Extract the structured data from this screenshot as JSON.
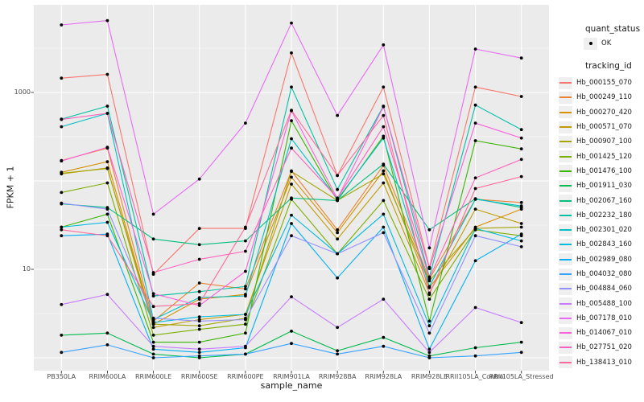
{
  "chart_data": {
    "type": "line",
    "title": "",
    "xlabel": "sample_name",
    "ylabel": "FPKM + 1",
    "y_scale": "log10",
    "ylim": [
      1,
      7000
    ],
    "grid": true,
    "legend_position": "right",
    "panel_bg": "#EBEBEB",
    "grid_color": "#FFFFFF",
    "point_color": "#000000",
    "y_ticks": [
      {
        "value": 10,
        "label": "10"
      },
      {
        "value": 1000,
        "label": "1000"
      }
    ],
    "y_major_gridlines": [
      1,
      10,
      100,
      1000
    ],
    "y_minor_gridlines": [
      3.162,
      31.62,
      316.2,
      3162
    ],
    "categories": [
      "PB350LA",
      "RRIM600LA",
      "RRIM600LE",
      "RRIM600SE",
      "RRIM600PE",
      "RRIM901LA",
      "RRIM928BA",
      "RRIM928LA",
      "RRIM928LE",
      "RRII105LA_Control",
      "RRII105LA_Stressed"
    ],
    "series": [
      {
        "name": "Hb_000155_070",
        "color": "#F8766D",
        "values": [
          1450,
          1600,
          8.8,
          29,
          29,
          2800,
          115,
          1150,
          10.5,
          1150,
          900
        ]
      },
      {
        "name": "Hb_000249_110",
        "color": "#EA8331",
        "values": [
          170,
          235,
          2.6,
          7.0,
          6.0,
          130,
          28,
          150,
          7.8,
          62,
          57
        ]
      },
      {
        "name": "Hb_000270_420",
        "color": "#D89000",
        "values": [
          125,
          165,
          2.4,
          4.6,
          5.2,
          110,
          26,
          130,
          6.2,
          30,
          48
        ]
      },
      {
        "name": "Hb_000571_070",
        "color": "#C09B00",
        "values": [
          120,
          140,
          2.2,
          2.7,
          3.1,
          92,
          22,
          95,
          5.4,
          48,
          33
        ]
      },
      {
        "name": "Hb_000907_100",
        "color": "#A3A500",
        "values": [
          122,
          138,
          2.4,
          2.3,
          2.8,
          128,
          60,
          120,
          7.4,
          29,
          30
        ]
      },
      {
        "name": "Hb_001425_120",
        "color": "#7CAE00",
        "values": [
          74,
          95,
          1.8,
          2.1,
          2.4,
          62,
          15,
          60,
          4.6,
          28,
          24
        ]
      },
      {
        "name": "Hb_001476_100",
        "color": "#39B600",
        "values": [
          30,
          42,
          1.5,
          1.5,
          1.9,
          480,
          60,
          320,
          2.6,
          285,
          230
        ]
      },
      {
        "name": "Hb_001911_030",
        "color": "#00BB4E",
        "values": [
          1.8,
          1.9,
          1.1,
          1.0,
          1.1,
          2.0,
          1.2,
          1.7,
          1.05,
          1.3,
          1.5
        ]
      },
      {
        "name": "Hb_002067_160",
        "color": "#00BF7D",
        "values": [
          55,
          50,
          22,
          19,
          21,
          64,
          60,
          155,
          28,
          63,
          50
        ]
      },
      {
        "name": "Hb_002232_180",
        "color": "#00C1A3",
        "values": [
          500,
          700,
          5.0,
          5.6,
          6.4,
          1150,
          80,
          700,
          8.2,
          720,
          380
        ]
      },
      {
        "name": "Hb_002301_020",
        "color": "#00BFC4",
        "values": [
          410,
          580,
          2.7,
          4.8,
          5.0,
          300,
          62,
          305,
          6.4,
          62,
          52
        ]
      },
      {
        "name": "Hb_002843_160",
        "color": "#00BAE0",
        "values": [
          30,
          34,
          2.5,
          2.9,
          3.1,
          41,
          15,
          42,
          2.3,
          29,
          21
        ]
      },
      {
        "name": "Hb_002989_080",
        "color": "#00B0F6",
        "values": [
          24,
          25,
          1.25,
          1.15,
          1.3,
          33,
          8.0,
          30,
          1.25,
          12.5,
          25
        ]
      },
      {
        "name": "Hb_004032_080",
        "color": "#35A2FF",
        "values": [
          1.15,
          1.4,
          1.0,
          1.05,
          1.1,
          1.45,
          1.1,
          1.35,
          1.0,
          1.05,
          1.15
        ]
      },
      {
        "name": "Hb_004884_060",
        "color": "#9590FF",
        "values": [
          56,
          48,
          2.8,
          2.6,
          2.7,
          24,
          15,
          26,
          1.9,
          24,
          18
        ]
      },
      {
        "name": "Hb_005488_100",
        "color": "#C77CFF",
        "values": [
          4.0,
          5.2,
          1.35,
          1.25,
          1.35,
          4.9,
          2.2,
          4.6,
          1.15,
          3.7,
          2.5
        ]
      },
      {
        "name": "Hb_007178_010",
        "color": "#E76BF3",
        "values": [
          5800,
          6500,
          42,
          105,
          450,
          6100,
          550,
          3450,
          17.5,
          3100,
          2450
        ]
      },
      {
        "name": "Hb_014067_010",
        "color": "#FA62DB",
        "values": [
          168,
          240,
          5.3,
          3.9,
          9.5,
          620,
          63,
          690,
          10.2,
          450,
          305
        ]
      },
      {
        "name": "Hb_027751_020",
        "color": "#FF62BC",
        "values": [
          495,
          580,
          9.2,
          13,
          16,
          235,
          64,
          410,
          8.0,
          108,
          175
        ]
      },
      {
        "name": "Hb_138413_010",
        "color": "#FF6A98",
        "values": [
          28,
          24,
          3.8,
          4.1,
          30,
          630,
          115,
          550,
          5.2,
          82,
          112
        ]
      }
    ]
  },
  "legend": {
    "quant_status": {
      "title": "quant_status",
      "items": [
        {
          "label": "OK",
          "symbol": "point"
        }
      ]
    },
    "tracking_id": {
      "title": "tracking_id"
    }
  }
}
